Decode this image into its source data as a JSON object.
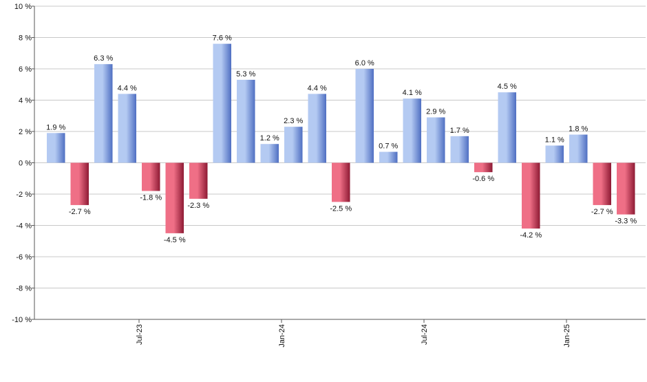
{
  "chart_data": {
    "type": "bar",
    "title": "",
    "xlabel": "",
    "ylabel": "",
    "ylim": [
      -10,
      10
    ],
    "y_ticks": [
      10,
      8,
      6,
      4,
      2,
      0,
      -2,
      -4,
      -6,
      -8,
      -10
    ],
    "y_tick_labels": [
      "10 %",
      "8 %",
      "6 %",
      "4 %",
      "2 %",
      "0 %",
      "-2 %",
      "-4 %",
      "-6 %",
      "-8 %",
      "-10 %"
    ],
    "grid": true,
    "colors": {
      "positive_light": "#b4caf2",
      "positive_dark": "#4f6fc2",
      "negative_light": "#ef6f86",
      "negative_dark": "#8e1a34",
      "grid": "#c8c8c8",
      "axis": "#555555"
    },
    "values": [
      1.9,
      -2.7,
      6.3,
      4.4,
      -1.8,
      -4.5,
      -2.3,
      7.6,
      5.3,
      1.2,
      2.3,
      4.4,
      -2.5,
      6.0,
      0.7,
      4.1,
      2.9,
      1.7,
      -0.6,
      4.5,
      -4.2,
      1.1,
      1.8,
      -2.7,
      -3.3
    ],
    "data_labels": [
      "1.9 %",
      "-2.7 %",
      "6.3 %",
      "4.4 %",
      "-1.8 %",
      "-4.5 %",
      "-2.3 %",
      "7.6 %",
      "5.3 %",
      "1.2 %",
      "2.3 %",
      "4.4 %",
      "-2.5 %",
      "6.0 %",
      "0.7 %",
      "4.1 %",
      "2.9 %",
      "1.7 %",
      "-0.6 %",
      "4.5 %",
      "-4.2 %",
      "1.1 %",
      "1.8 %",
      "-2.7 %",
      "-3.3 %"
    ],
    "x_tick_labels": [
      "Jul-23",
      "Jan-24",
      "Jul-24",
      "Jan-25"
    ],
    "x_tick_bar_index": [
      3.5,
      9.5,
      15.5,
      21.5
    ]
  }
}
